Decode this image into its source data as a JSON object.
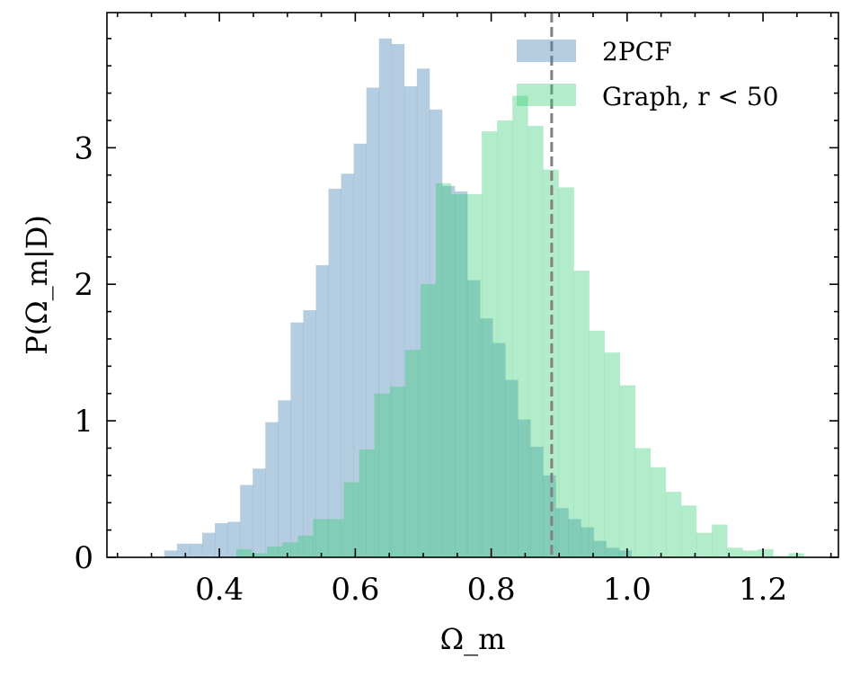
{
  "chart_data": {
    "type": "bar",
    "subtype": "histogram",
    "xlabel": "Ω_m",
    "ylabel": "P(Ω_m|D)",
    "xlim": [
      0.2345,
      1.311
    ],
    "ylim": [
      0,
      3.99
    ],
    "xticks": [
      0.4,
      0.6,
      0.8,
      1.0,
      1.2
    ],
    "xtick_labels": [
      "0.4",
      "0.6",
      "0.8",
      "1.0",
      "1.2"
    ],
    "yticks": [
      0,
      1,
      2,
      3
    ],
    "ytick_labels": [
      "0",
      "1",
      "2",
      "3"
    ],
    "legend_position": "top-right",
    "reference_line": {
      "x": 0.889,
      "style": "dashed",
      "color": "#808080"
    },
    "series": [
      {
        "name": "2PCF",
        "color": "#4682b4",
        "opacity": 0.4,
        "bin_start": 0.319,
        "bin_width": 0.01858,
        "values": [
          0.05,
          0.1,
          0.1,
          0.18,
          0.25,
          0.26,
          0.53,
          0.65,
          0.99,
          1.15,
          1.72,
          1.81,
          2.14,
          2.7,
          2.81,
          3.03,
          3.44,
          3.8,
          3.76,
          3.45,
          3.58,
          3.28,
          2.72,
          2.68,
          2.03,
          1.75,
          1.57,
          1.3,
          1.01,
          0.81,
          0.6,
          0.36,
          0.28,
          0.22,
          0.12,
          0.07,
          0.05
        ]
      },
      {
        "name": "Graph, r < 50",
        "color": "#2ecc71",
        "opacity": 0.37,
        "bin_start": 0.425,
        "bin_width": 0.02257,
        "values": [
          0.06,
          0.03,
          0.08,
          0.11,
          0.16,
          0.28,
          0.28,
          0.55,
          0.79,
          1.2,
          1.25,
          1.52,
          2.0,
          2.74,
          2.66,
          2.66,
          3.12,
          3.2,
          3.38,
          3.16,
          2.84,
          2.71,
          2.1,
          1.66,
          1.5,
          1.26,
          0.8,
          0.66,
          0.48,
          0.38,
          0.18,
          0.24,
          0.07,
          0.05,
          0.06,
          0.01,
          0.03
        ]
      }
    ]
  }
}
